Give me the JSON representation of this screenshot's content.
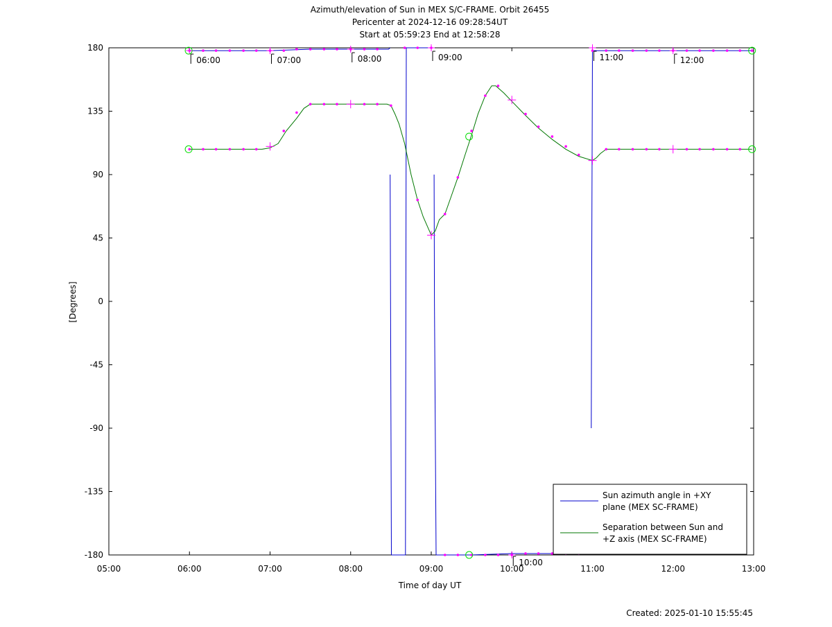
{
  "titles": {
    "line1": "Azimuth/elevation of Sun in MEX S/C-FRAME.  Orbit 26455",
    "line2": "Pericenter at 2024-12-16 09:28:54UT",
    "line3": "Start at 05:59:23 End at 12:58:28"
  },
  "footer": {
    "created": "Created: 2025-01-10 15:55:45"
  },
  "colors": {
    "azimuth": "#0000cc",
    "separation": "#007700",
    "marker": "#ff00ff",
    "circle": "#00dd00",
    "frame": "#000000"
  },
  "chart_data": {
    "type": "line",
    "xlabel": "Time of day UT",
    "ylabel": "[Degrees]",
    "xlim": [
      5,
      13
    ],
    "ylim": [
      -180,
      180
    ],
    "x_ticks": [
      5,
      6,
      7,
      8,
      9,
      10,
      11,
      12,
      13
    ],
    "x_tick_labels": [
      "05:00",
      "06:00",
      "07:00",
      "08:00",
      "09:00",
      "10:00",
      "11:00",
      "12:00",
      "13:00"
    ],
    "y_ticks": [
      180,
      135,
      90,
      45,
      0,
      -45,
      -90,
      -135,
      -180
    ],
    "y_tick_labels": [
      "180",
      "135",
      "90",
      "45",
      "0",
      "-45",
      "-90",
      "-135",
      "-180"
    ],
    "legend_position": "bottom-right",
    "series": [
      {
        "name": "Sun azimuth angle in +XY plane (MEX SC-FRAME)",
        "legend_lines": [
          "Sun azimuth angle in +XY",
          "plane (MEX SC-FRAME)"
        ],
        "segments": [
          {
            "x": [
              5.99,
              6.5,
              7.0,
              7.5,
              8.0,
              8.3,
              8.47,
              8.49
            ],
            "y": [
              178,
              178,
              178,
              179,
              179,
              179,
              179,
              180
            ]
          },
          {
            "x": [
              8.49,
              8.495,
              8.5,
              8.505
            ],
            "y": [
              90,
              0,
              -90,
              -180
            ]
          },
          {
            "x": [
              8.51,
              8.68
            ],
            "y": [
              -180,
              -180
            ]
          },
          {
            "x": [
              8.68,
              8.685,
              8.69
            ],
            "y": [
              -180,
              0,
              180
            ]
          },
          {
            "x": [
              8.69,
              8.9,
              9.03
            ],
            "y": [
              180,
              180,
              180
            ]
          },
          {
            "x": [
              9.035,
              9.04,
              9.05,
              9.06
            ],
            "y": [
              90,
              0,
              -90,
              -180
            ]
          },
          {
            "x": [
              9.06,
              9.5,
              10.0,
              10.5,
              10.98
            ],
            "y": [
              -180,
              -180,
              -179,
              -179,
              -179
            ]
          },
          {
            "x": [
              10.985,
              10.99,
              10.995,
              11.0
            ],
            "y": [
              -90,
              0,
              90,
              178
            ]
          },
          {
            "x": [
              11.0,
              11.5,
              12.0,
              12.5,
              12.98
            ],
            "y": [
              178,
              178,
              178,
              178,
              178
            ]
          }
        ],
        "markers": [
          [
            6.0,
            178
          ],
          [
            6.17,
            178
          ],
          [
            6.33,
            178
          ],
          [
            6.5,
            178
          ],
          [
            6.67,
            178
          ],
          [
            6.83,
            178
          ],
          [
            7.0,
            178
          ],
          [
            7.17,
            178
          ],
          [
            7.33,
            179
          ],
          [
            7.5,
            179
          ],
          [
            7.67,
            179
          ],
          [
            7.83,
            179
          ],
          [
            8.0,
            179
          ],
          [
            8.17,
            179
          ],
          [
            8.33,
            179
          ],
          [
            8.67,
            180
          ],
          [
            8.83,
            180
          ],
          [
            9.0,
            180
          ],
          [
            9.17,
            -180
          ],
          [
            9.33,
            -180
          ],
          [
            9.5,
            -180
          ],
          [
            9.67,
            -180
          ],
          [
            9.83,
            -180
          ],
          [
            10.0,
            -180
          ],
          [
            10.17,
            -179
          ],
          [
            10.33,
            -179
          ],
          [
            10.5,
            -179
          ],
          [
            10.67,
            -179
          ],
          [
            10.83,
            -179
          ],
          [
            11.0,
            178
          ],
          [
            11.17,
            178
          ],
          [
            11.33,
            178
          ],
          [
            11.5,
            178
          ],
          [
            11.67,
            178
          ],
          [
            11.83,
            178
          ],
          [
            12.0,
            178
          ],
          [
            12.17,
            178
          ],
          [
            12.33,
            178
          ],
          [
            12.5,
            178
          ],
          [
            12.67,
            178
          ],
          [
            12.83,
            178
          ],
          [
            12.98,
            178
          ]
        ]
      },
      {
        "name": "Separation between Sun and +Z axis (MEX SC-FRAME)",
        "legend_lines": [
          "Separation between Sun and",
          "+Z axis (MEX SC-FRAME)"
        ],
        "segments": [
          {
            "x": [
              5.99,
              6.5,
              6.9,
              7.0,
              7.1,
              7.2,
              7.33,
              7.42,
              7.5,
              8.0,
              8.45,
              8.5,
              8.55,
              8.6,
              8.67,
              8.75,
              8.83,
              8.9,
              9.0,
              9.05,
              9.1,
              9.17,
              9.25,
              9.33,
              9.42,
              9.5,
              9.58,
              9.67,
              9.75,
              9.8,
              9.9,
              10.0,
              10.17,
              10.33,
              10.5,
              10.67,
              10.83,
              11.0,
              11.05,
              11.1,
              11.17,
              11.5,
              12.0,
              12.5,
              12.98
            ],
            "y": [
              108,
              108,
              108,
              109,
              112,
              121,
              130,
              137,
              140,
              140,
              140,
              139,
              133,
              126,
              112,
              90,
              72,
              60,
              47,
              50,
              58,
              62,
              75,
              88,
              104,
              118,
              133,
              146,
              153,
              153,
              148,
              142,
              132,
              123,
              115,
              108,
              103,
              100,
              102,
              105,
              108,
              108,
              108,
              108,
              108
            ]
          }
        ],
        "markers": [
          [
            6.0,
            108
          ],
          [
            6.17,
            108
          ],
          [
            6.33,
            108
          ],
          [
            6.5,
            108
          ],
          [
            6.67,
            108
          ],
          [
            6.83,
            108
          ],
          [
            7.17,
            121
          ],
          [
            7.33,
            134
          ],
          [
            7.5,
            140
          ],
          [
            7.67,
            140
          ],
          [
            7.83,
            140
          ],
          [
            8.17,
            140
          ],
          [
            8.33,
            140
          ],
          [
            8.5,
            139
          ],
          [
            8.83,
            72
          ],
          [
            9.17,
            62
          ],
          [
            9.33,
            88
          ],
          [
            9.5,
            121
          ],
          [
            9.67,
            146
          ],
          [
            9.83,
            153
          ],
          [
            10.17,
            133
          ],
          [
            10.33,
            124
          ],
          [
            10.5,
            117
          ],
          [
            10.67,
            110
          ],
          [
            10.83,
            104
          ],
          [
            11.17,
            108
          ],
          [
            11.33,
            108
          ],
          [
            11.5,
            108
          ],
          [
            11.67,
            108
          ],
          [
            11.83,
            108
          ],
          [
            12.17,
            108
          ],
          [
            12.33,
            108
          ],
          [
            12.5,
            108
          ],
          [
            12.67,
            108
          ],
          [
            12.83,
            108
          ]
        ],
        "hour_crosses": [
          [
            7.0,
            110
          ],
          [
            8.0,
            140
          ],
          [
            9.0,
            47
          ],
          [
            10.0,
            143
          ],
          [
            11.0,
            100
          ],
          [
            12.0,
            108
          ]
        ],
        "hour_crosses_azimuth": [
          [
            6.0,
            178
          ],
          [
            7.0,
            178
          ],
          [
            8.0,
            179
          ],
          [
            9.0,
            180
          ],
          [
            10.0,
            -180
          ],
          [
            11.0,
            180
          ],
          [
            12.0,
            178
          ]
        ]
      }
    ],
    "circle_markers": [
      [
        5.99,
        178
      ],
      [
        12.98,
        178
      ],
      [
        5.99,
        108
      ],
      [
        12.98,
        108
      ],
      [
        9.47,
        117
      ],
      [
        9.47,
        -180
      ]
    ],
    "hour_annotations": [
      {
        "label": "06:00",
        "x": 6.0,
        "y": 178
      },
      {
        "label": "07:00",
        "x": 7.0,
        "y": 178
      },
      {
        "label": "08:00",
        "x": 8.0,
        "y": 179
      },
      {
        "label": "09:00",
        "x": 9.0,
        "y": 180
      },
      {
        "label": "10:00",
        "x": 10.0,
        "y": -180
      },
      {
        "label": "11:00",
        "x": 11.0,
        "y": 180
      },
      {
        "label": "12:00",
        "x": 12.0,
        "y": 178
      }
    ]
  }
}
